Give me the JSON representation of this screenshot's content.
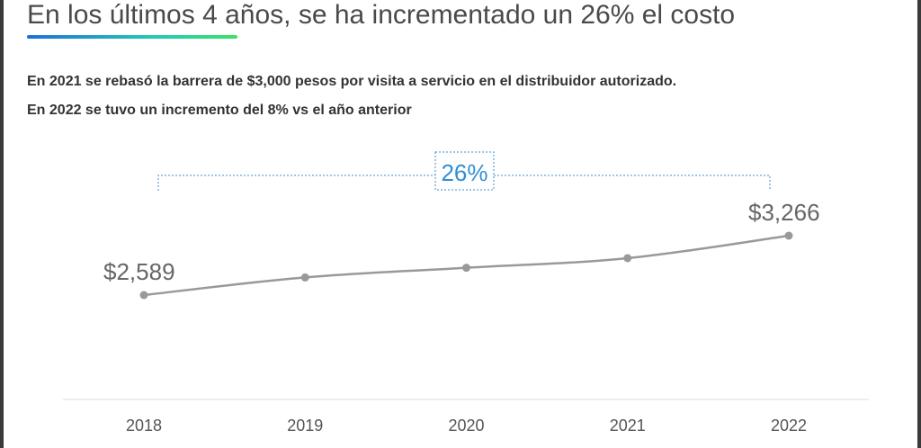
{
  "header": {
    "title": "En los últimos 4 años, se ha incrementado un 26% el costo",
    "subtitle_line1": "En 2021 se rebasó la barrera de $3,000 pesos por visita a servicio en el distribuidor autorizado.",
    "subtitle_line2": "En 2022 se tuvo un incremento del 8% vs el año anterior"
  },
  "colors": {
    "line": "#999999",
    "bracket": "#3a8fd0",
    "label_text": "#666666",
    "highlight_text": "#2f8fd6",
    "axis": "#dddddd"
  },
  "chart_data": {
    "type": "line",
    "categories": [
      "2018",
      "2019",
      "2020",
      "2021",
      "2022"
    ],
    "values": [
      2589,
      2790,
      2900,
      3010,
      3266
    ],
    "ylim": [
      2000,
      3600
    ],
    "grid": false,
    "legend": "none",
    "data_labels": [
      {
        "index": 0,
        "text": "$2,589"
      },
      {
        "index": 4,
        "text": "$3,266"
      }
    ],
    "annotation": {
      "text": "26%",
      "from_index": 0,
      "to_index": 4
    }
  }
}
